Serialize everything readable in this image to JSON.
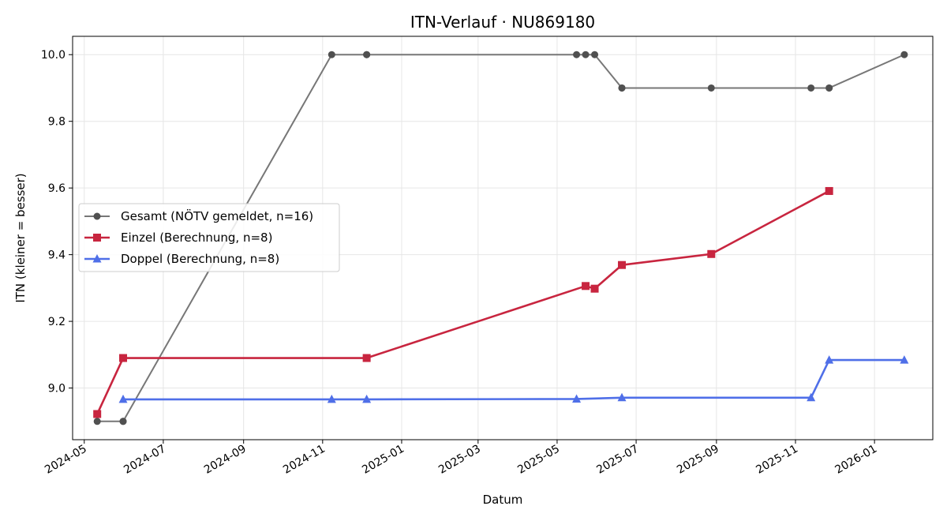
{
  "chart_data": {
    "type": "line",
    "title": "ITN-Verlauf · NU869180",
    "xlabel": "Datum",
    "ylabel": "ITN  (kleiner = besser)",
    "xlim": [
      "2024-04-22",
      "2026-02-15"
    ],
    "ylim": [
      8.845,
      10.055
    ],
    "grid": true,
    "legend_position": "center-left",
    "x_ticks": [
      "2024-05",
      "2024-07",
      "2024-09",
      "2024-11",
      "2025-01",
      "2025-03",
      "2025-05",
      "2025-07",
      "2025-09",
      "2025-11",
      "2026-01"
    ],
    "y_ticks": [
      "9.0",
      "9.2",
      "9.4",
      "9.6",
      "9.8",
      "10.0"
    ],
    "series": [
      {
        "name": "Gesamt (NÖTV gemeldet, n=16)",
        "color": "#777777",
        "marker_color": "#505050",
        "marker": "circle",
        "points": [
          {
            "x": "2024-05-11",
            "y": 8.9
          },
          {
            "x": "2024-05-31",
            "y": 8.9
          },
          {
            "x": "2024-05-31",
            "y": 8.9
          },
          {
            "x": "2024-11-08",
            "y": 10.0
          },
          {
            "x": "2024-12-05",
            "y": 10.0
          },
          {
            "x": "2024-12-05",
            "y": 10.0
          },
          {
            "x": "2025-05-16",
            "y": 10.0
          },
          {
            "x": "2025-05-23",
            "y": 10.0
          },
          {
            "x": "2025-05-30",
            "y": 10.0
          },
          {
            "x": "2025-06-20",
            "y": 9.9
          },
          {
            "x": "2025-06-20",
            "y": 9.9
          },
          {
            "x": "2025-08-28",
            "y": 9.9
          },
          {
            "x": "2025-11-13",
            "y": 9.9
          },
          {
            "x": "2025-11-27",
            "y": 9.9
          },
          {
            "x": "2025-11-27",
            "y": 9.9
          },
          {
            "x": "2026-01-24",
            "y": 10.0
          }
        ]
      },
      {
        "name": "Einzel (Berechnung, n=8)",
        "color": "#c8253f",
        "marker_color": "#c8253f",
        "marker": "square",
        "points": [
          {
            "x": "2024-05-11",
            "y": 8.922
          },
          {
            "x": "2024-05-31",
            "y": 9.09
          },
          {
            "x": "2024-12-05",
            "y": 9.09
          },
          {
            "x": "2025-05-23",
            "y": 9.306
          },
          {
            "x": "2025-05-30",
            "y": 9.298
          },
          {
            "x": "2025-06-20",
            "y": 9.369
          },
          {
            "x": "2025-08-28",
            "y": 9.402
          },
          {
            "x": "2025-11-27",
            "y": 9.591
          }
        ]
      },
      {
        "name": "Doppel (Berechnung, n=8)",
        "color": "#4f6fe8",
        "marker_color": "#4f6fe8",
        "marker": "triangle",
        "points": [
          {
            "x": "2024-05-31",
            "y": 8.966
          },
          {
            "x": "2024-11-08",
            "y": 8.966
          },
          {
            "x": "2024-12-05",
            "y": 8.966
          },
          {
            "x": "2025-05-16",
            "y": 8.967
          },
          {
            "x": "2025-06-20",
            "y": 8.971
          },
          {
            "x": "2025-11-13",
            "y": 8.971
          },
          {
            "x": "2025-11-27",
            "y": 9.084
          },
          {
            "x": "2026-01-24",
            "y": 9.084
          }
        ]
      }
    ]
  }
}
